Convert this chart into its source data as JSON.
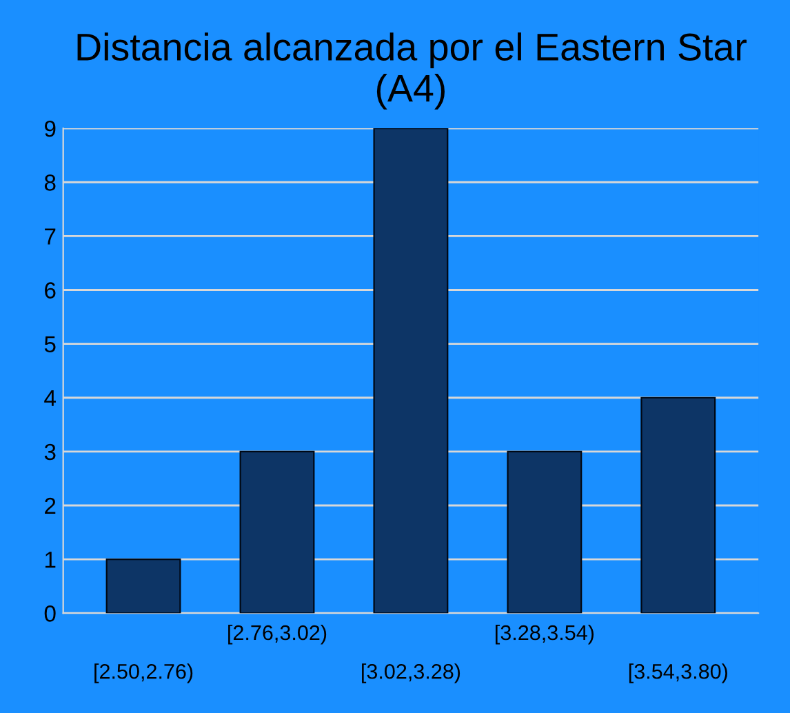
{
  "chart_data": {
    "type": "bar",
    "title": "Distancia alcanzada por el Eastern Star\n(A4)",
    "categories": [
      "[2.50,2.76)",
      "[2.76,3.02)",
      "[3.02,3.28)",
      "[3.28,3.54)",
      "[3.54,3.80)"
    ],
    "values": [
      1,
      3,
      9,
      3,
      4
    ],
    "color": "#0d3566",
    "ylim": [
      0,
      9
    ],
    "yticks": [
      0,
      1,
      2,
      3,
      4,
      5,
      6,
      7,
      8,
      9
    ],
    "grid": "y",
    "legend": false
  }
}
